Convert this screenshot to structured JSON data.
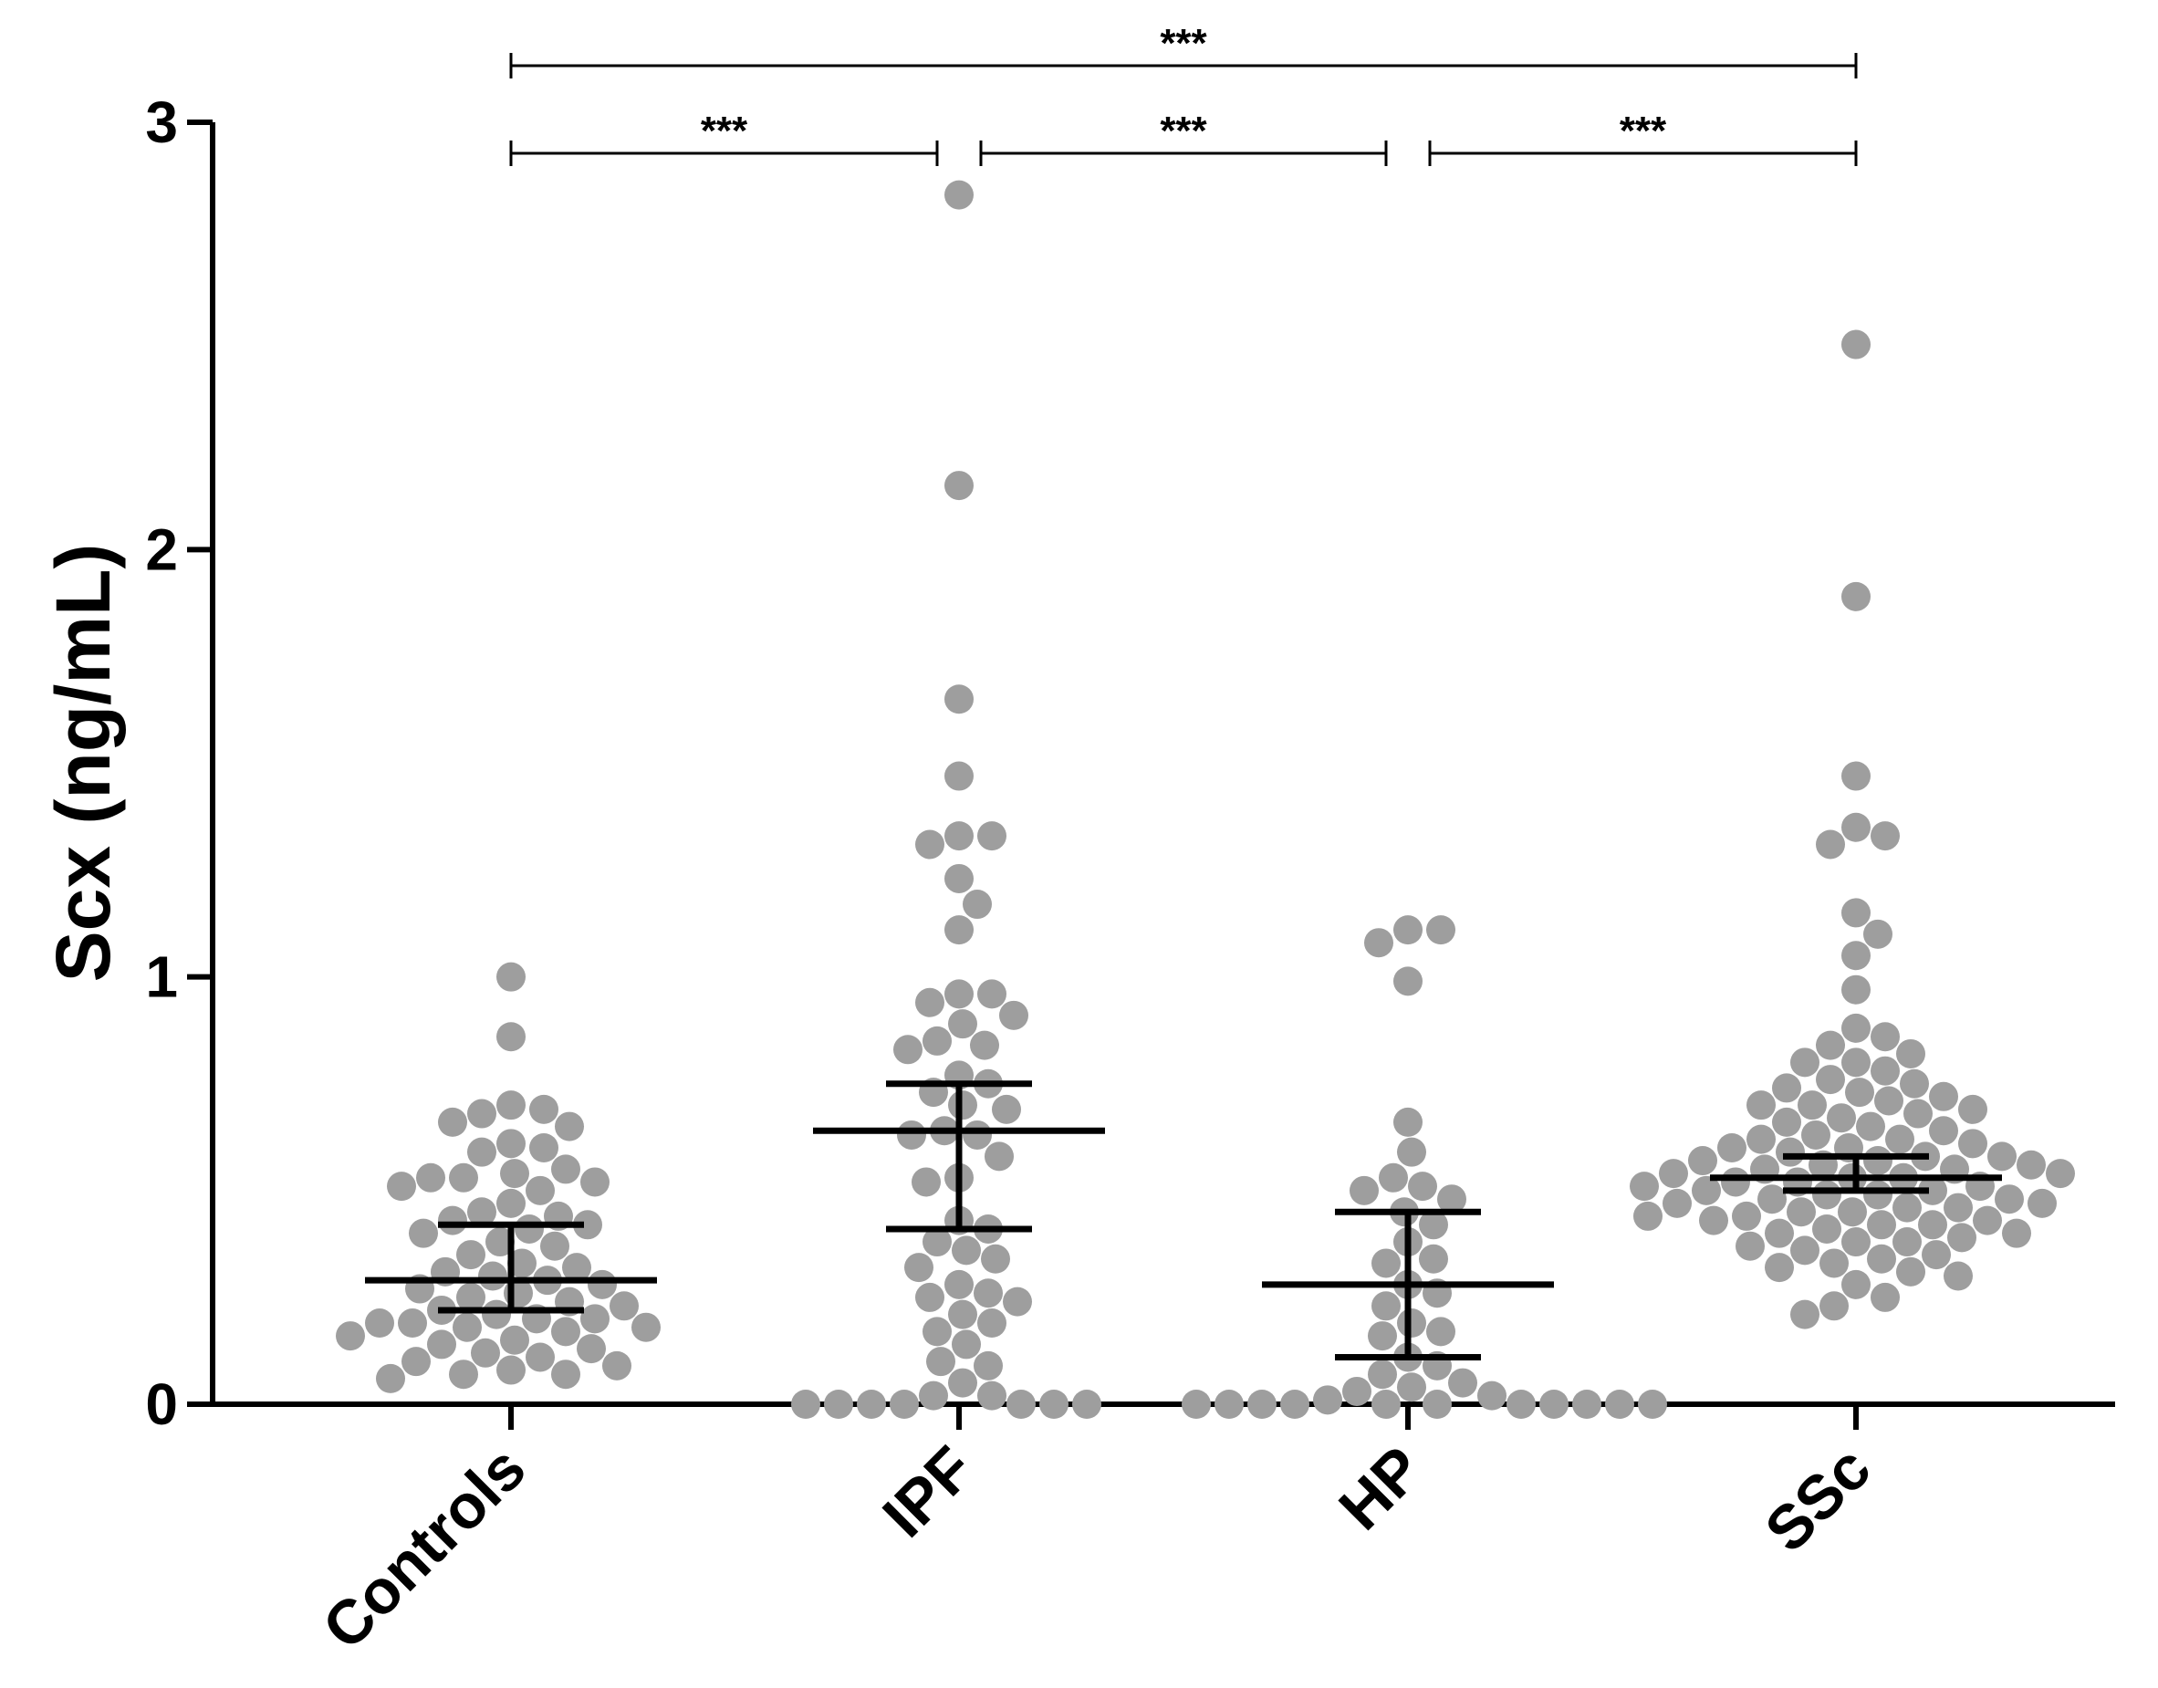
{
  "chart_data": {
    "type": "scatter",
    "title": "",
    "xlabel": "",
    "ylabel": "Scx (ng/mL)",
    "ylim": [
      0,
      3
    ],
    "yticks": [
      "0",
      "1",
      "2",
      "3"
    ],
    "categories": [
      "Controls",
      "IPF",
      "HP",
      "SSc"
    ],
    "colors": {
      "points": "#9e9e9e",
      "bars": "#000000"
    },
    "grid": false,
    "series": [
      {
        "category": "Controls",
        "mean": 0.29,
        "ci_low": 0.22,
        "ci_high": 0.42,
        "values": [
          1.0,
          0.86,
          0.7,
          0.69,
          0.68,
          0.66,
          0.65,
          0.61,
          0.6,
          0.59,
          0.55,
          0.54,
          0.53,
          0.53,
          0.52,
          0.51,
          0.5,
          0.47,
          0.45,
          0.44,
          0.43,
          0.42,
          0.41,
          0.4,
          0.38,
          0.37,
          0.35,
          0.33,
          0.32,
          0.31,
          0.3,
          0.29,
          0.28,
          0.27,
          0.26,
          0.25,
          0.24,
          0.23,
          0.22,
          0.21,
          0.2,
          0.2,
          0.19,
          0.19,
          0.18,
          0.18,
          0.17,
          0.16,
          0.15,
          0.14,
          0.13,
          0.12,
          0.11,
          0.1,
          0.09,
          0.08,
          0.07,
          0.07,
          0.06
        ]
      },
      {
        "category": "IPF",
        "mean": 0.64,
        "ci_low": 0.41,
        "ci_high": 0.75,
        "values": [
          2.83,
          2.15,
          1.65,
          1.47,
          1.33,
          1.33,
          1.31,
          1.23,
          1.17,
          1.11,
          0.96,
          0.96,
          0.94,
          0.91,
          0.89,
          0.85,
          0.84,
          0.83,
          0.77,
          0.75,
          0.73,
          0.7,
          0.69,
          0.64,
          0.63,
          0.63,
          0.58,
          0.53,
          0.52,
          0.43,
          0.41,
          0.38,
          0.36,
          0.34,
          0.32,
          0.28,
          0.26,
          0.25,
          0.24,
          0.21,
          0.19,
          0.17,
          0.14,
          0.1,
          0.09,
          0.05,
          0.02,
          0.02,
          0.0,
          0.0,
          0.0,
          0.0,
          0.0,
          0.0,
          0.0
        ]
      },
      {
        "category": "HP",
        "mean": 0.28,
        "ci_low": 0.11,
        "ci_high": 0.45,
        "values": [
          1.11,
          1.11,
          1.08,
          0.99,
          0.66,
          0.59,
          0.53,
          0.51,
          0.5,
          0.48,
          0.45,
          0.42,
          0.38,
          0.34,
          0.33,
          0.28,
          0.26,
          0.23,
          0.19,
          0.17,
          0.16,
          0.11,
          0.09,
          0.07,
          0.05,
          0.04,
          0.03,
          0.02,
          0.01,
          0.0,
          0.0,
          0.0,
          0.0,
          0.0,
          0.0,
          0.0,
          0.0,
          0.0,
          0.0,
          0.0
        ]
      },
      {
        "category": "SSc",
        "mean": 0.53,
        "ci_low": 0.5,
        "ci_high": 0.58,
        "values": [
          2.48,
          1.89,
          1.47,
          1.35,
          1.33,
          1.31,
          1.15,
          1.1,
          1.05,
          0.97,
          0.88,
          0.86,
          0.84,
          0.82,
          0.8,
          0.8,
          0.78,
          0.76,
          0.75,
          0.74,
          0.73,
          0.72,
          0.71,
          0.7,
          0.7,
          0.69,
          0.68,
          0.67,
          0.66,
          0.65,
          0.64,
          0.63,
          0.62,
          0.62,
          0.61,
          0.6,
          0.6,
          0.59,
          0.58,
          0.58,
          0.57,
          0.57,
          0.56,
          0.56,
          0.55,
          0.55,
          0.54,
          0.54,
          0.53,
          0.53,
          0.52,
          0.52,
          0.51,
          0.51,
          0.5,
          0.5,
          0.49,
          0.49,
          0.48,
          0.48,
          0.47,
          0.47,
          0.46,
          0.46,
          0.45,
          0.45,
          0.44,
          0.44,
          0.43,
          0.43,
          0.42,
          0.42,
          0.41,
          0.4,
          0.4,
          0.39,
          0.38,
          0.38,
          0.37,
          0.36,
          0.35,
          0.34,
          0.33,
          0.32,
          0.31,
          0.3,
          0.28,
          0.25,
          0.23,
          0.21
        ]
      }
    ],
    "significance": [
      {
        "from": "Controls",
        "to": "SSc",
        "label": "***",
        "level": 0
      },
      {
        "from": "Controls",
        "to": "IPF",
        "label": "***",
        "level": 1
      },
      {
        "from": "IPF",
        "to": "HP",
        "label": "***",
        "level": 1
      },
      {
        "from": "HP",
        "to": "SSc",
        "label": "***",
        "level": 1
      }
    ]
  }
}
